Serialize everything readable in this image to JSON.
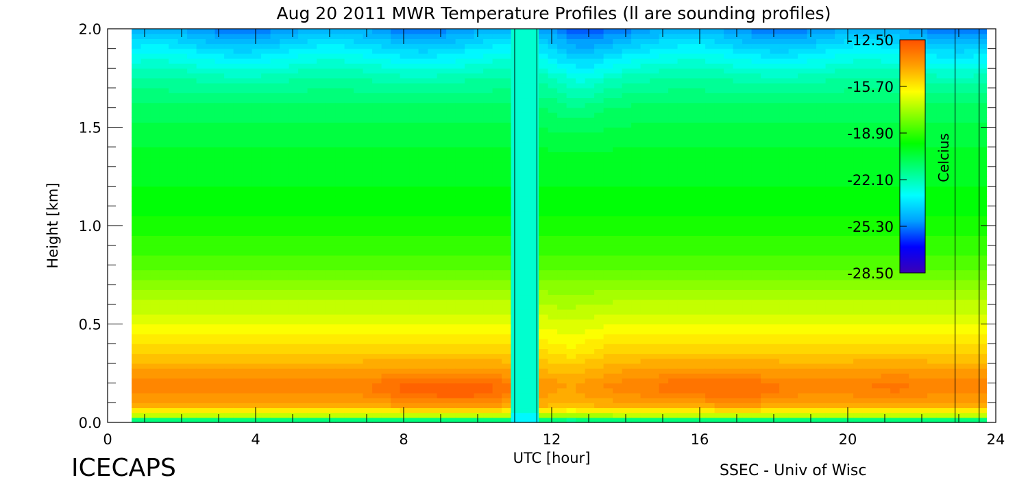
{
  "chart_data": {
    "type": "heatmap",
    "title": "Aug 20 2011 MWR Temperature Profiles (ll are sounding profiles)",
    "xlabel": "UTC [hour]",
    "ylabel": "Height [km]",
    "xlim": [
      0,
      24
    ],
    "ylim": [
      0,
      2.0
    ],
    "x_ticks": [
      "0",
      "4",
      "8",
      "12",
      "16",
      "20",
      "24"
    ],
    "y_ticks": [
      "0.0",
      "0.5",
      "1.0",
      "1.5",
      "2.0"
    ],
    "data_x_range": [
      0.65,
      23.75
    ],
    "data_gap_hours": [
      11.0,
      11.6
    ],
    "sounding_times_hours": [
      11.0,
      11.6,
      22.9,
      23.55
    ],
    "colorbar": {
      "label": "Celcius",
      "ticks": [
        "-12.50",
        "-15.70",
        "-18.90",
        "-22.10",
        "-25.30",
        "-28.50"
      ],
      "range": [
        -28.5,
        -12.5
      ],
      "colors": [
        "#3c00b4",
        "#0000ff",
        "#00a0ff",
        "#00ffff",
        "#00ff80",
        "#00ff00",
        "#80ff00",
        "#ffff00",
        "#ffa000",
        "#ff5000"
      ]
    },
    "profile_heights_km": [
      0.0,
      0.03,
      0.08,
      0.15,
      0.2,
      0.3,
      0.45,
      0.6,
      0.8,
      1.0,
      1.2,
      1.4,
      1.6,
      1.75,
      1.85,
      1.95,
      2.0
    ],
    "profile_temperature_c": [
      -24.0,
      -17.5,
      -14.6,
      -13.9,
      -13.8,
      -14.6,
      -15.9,
      -17.0,
      -18.4,
      -19.4,
      -19.9,
      -20.3,
      -21.0,
      -22.0,
      -23.1,
      -24.3,
      -25.0
    ],
    "hotspots": [
      {
        "x": 8.2,
        "y": 0.17,
        "delta_c": 0.8
      },
      {
        "x": 9.8,
        "y": 0.16,
        "delta_c": 1.0
      },
      {
        "x": 15.5,
        "y": 0.18,
        "delta_c": 0.5
      },
      {
        "x": 17.2,
        "y": 0.16,
        "delta_c": 0.7
      },
      {
        "x": 21.2,
        "y": 0.18,
        "delta_c": 0.4
      }
    ],
    "coldspots": [
      {
        "x": 12.5,
        "y": 0.3,
        "delta_c": -0.6
      },
      {
        "x": 12.7,
        "y": 1.8,
        "delta_c": -0.7
      }
    ]
  },
  "branding": {
    "left": "ICECAPS",
    "right": "SSEC - Univ of Wisc"
  }
}
